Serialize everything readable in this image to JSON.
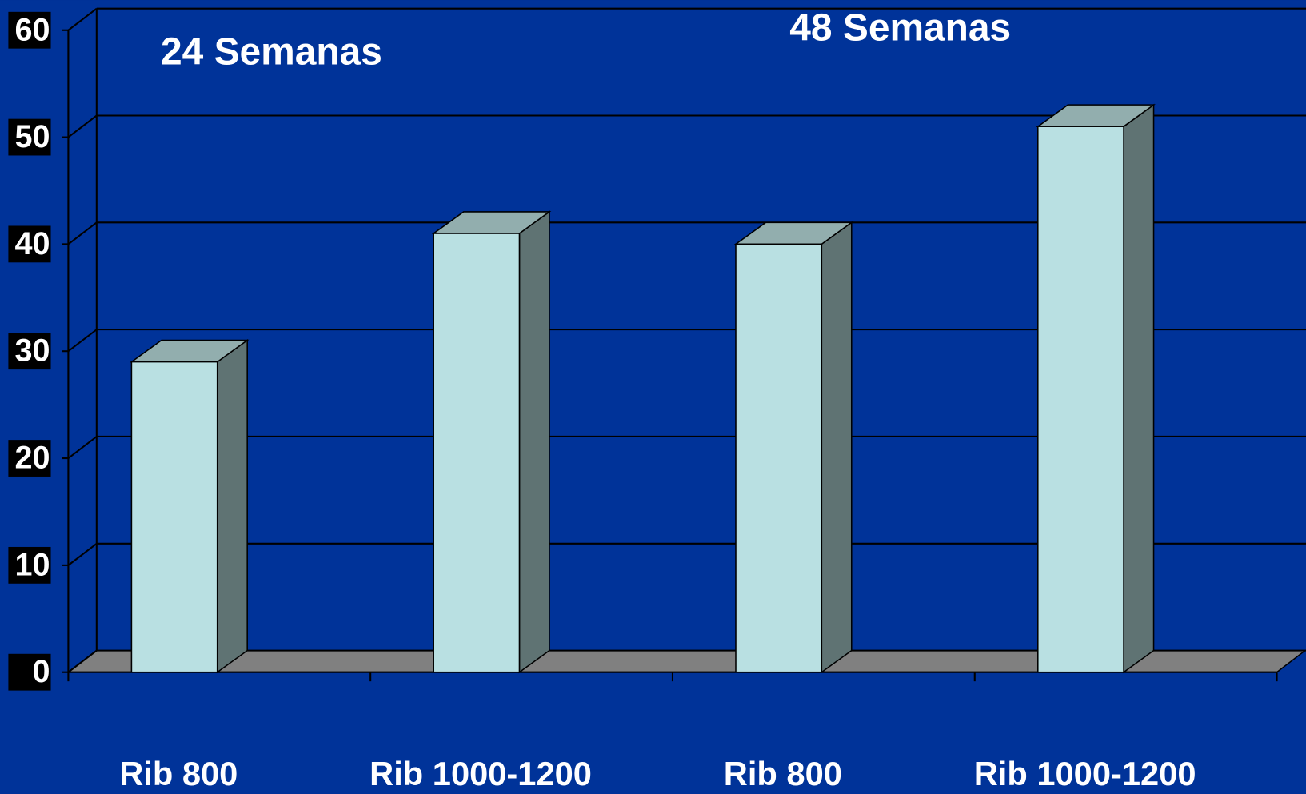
{
  "chart_data": {
    "type": "bar3d",
    "annotations": [
      "24  Semanas",
      "48  Semanas"
    ],
    "categories": [
      "Rib 800",
      "Rib 1000-1200",
      "Rib 800",
      "Rib 1000-1200"
    ],
    "values": [
      29,
      41,
      40,
      51
    ],
    "color": "#b9e0e2",
    "ylim": [
      0,
      60
    ],
    "yticks": [
      0,
      10,
      20,
      30,
      40,
      50,
      60
    ],
    "grid": true
  }
}
